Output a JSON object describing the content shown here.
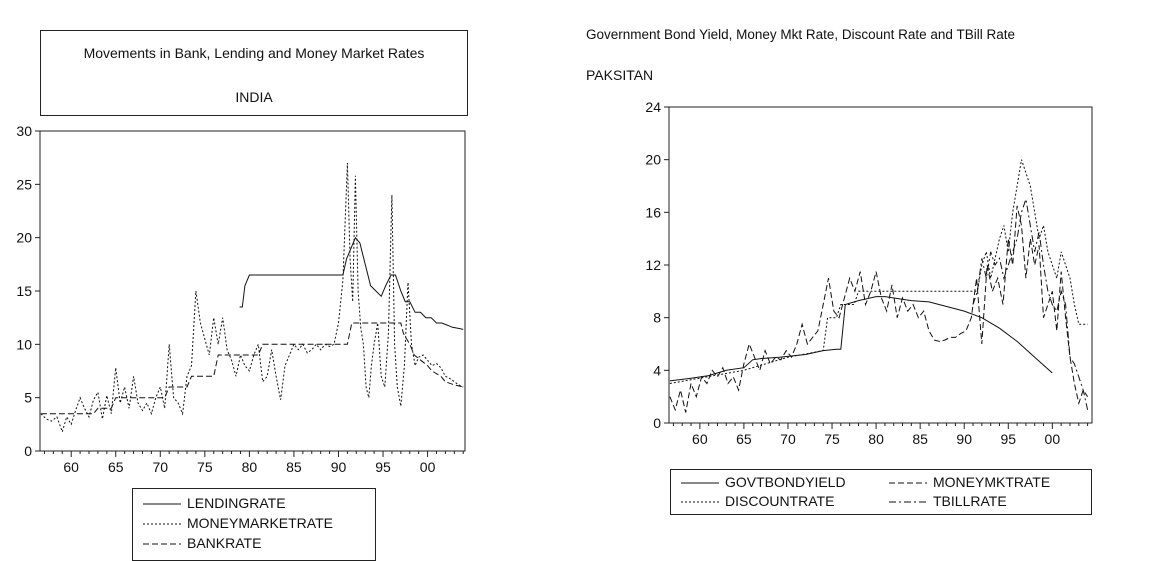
{
  "left_chart": {
    "title_line1": "Movements in Bank, Lending and Money Market Rates",
    "title_line2": "INDIA"
  },
  "right_chart": {
    "title": "Government Bond Yield, Money Mkt Rate, Discount Rate and TBill Rate",
    "country": "PAKSITAN"
  },
  "chart_data": [
    {
      "type": "line",
      "title": "Movements in Bank, Lending and Money Market Rates",
      "subtitle": "INDIA",
      "xlim": [
        1956.5,
        2004.2
      ],
      "ylim": [
        0,
        30
      ],
      "xticks": [
        1960,
        1965,
        1970,
        1975,
        1980,
        1985,
        1990,
        1995,
        2000
      ],
      "xtick_labels": [
        "60",
        "65",
        "70",
        "75",
        "80",
        "85",
        "90",
        "95",
        "00"
      ],
      "yticks": [
        0,
        5,
        10,
        15,
        20,
        25,
        30
      ],
      "ytick_labels": [
        "0",
        "5",
        "10",
        "15",
        "20",
        "25",
        "30"
      ],
      "legend_position": "bottom",
      "series": [
        {
          "name": "LENDINGRATE",
          "style": "solid",
          "x": [
            1978.9,
            1979.2,
            1979.5,
            1980.0,
            1990.5,
            1990.9,
            1991.4,
            1991.9,
            1992.4,
            1993.0,
            1993.6,
            1994.2,
            1994.8,
            1995.3,
            1995.9,
            1996.4,
            1997.0,
            1997.5,
            1998.0,
            1998.6,
            1999.2,
            1999.8,
            2000.4,
            2001.0,
            2001.6,
            2002.2,
            2002.8,
            2003.4,
            2004.0
          ],
          "y": [
            13.5,
            13.5,
            15.5,
            16.5,
            16.5,
            18.0,
            19.0,
            20.0,
            19.5,
            17.5,
            15.5,
            15.0,
            14.5,
            15.5,
            16.5,
            16.5,
            15.0,
            14.0,
            14.0,
            13.0,
            13.0,
            12.5,
            12.5,
            12.0,
            12.0,
            11.8,
            11.6,
            11.5,
            11.4
          ]
        },
        {
          "name": "MONEYMARKETRATE",
          "style": "dotted",
          "x": [
            1956.6,
            1957.2,
            1957.8,
            1958.4,
            1959.0,
            1959.5,
            1960.0,
            1960.5,
            1961.0,
            1961.5,
            1962.0,
            1962.5,
            1963.0,
            1963.5,
            1964.0,
            1964.5,
            1965.0,
            1965.5,
            1966.0,
            1966.5,
            1967.0,
            1967.5,
            1968.0,
            1968.5,
            1969.0,
            1969.5,
            1970.0,
            1970.5,
            1971.0,
            1971.5,
            1972.0,
            1972.5,
            1973.0,
            1973.5,
            1974.0,
            1974.5,
            1975.0,
            1975.5,
            1976.0,
            1976.5,
            1977.0,
            1977.5,
            1978.0,
            1978.5,
            1979.0,
            1979.5,
            1980.0,
            1980.5,
            1981.0,
            1981.5,
            1982.0,
            1982.5,
            1983.0,
            1983.5,
            1984.0,
            1984.5,
            1985.0,
            1985.5,
            1986.0,
            1986.5,
            1987.0,
            1987.5,
            1988.0,
            1988.5,
            1989.0,
            1989.5,
            1990.0,
            1990.5,
            1991.0,
            1991.3,
            1991.6,
            1991.9,
            1992.2,
            1992.5,
            1992.8,
            1993.1,
            1993.4,
            1993.7,
            1994.0,
            1994.4,
            1994.8,
            1995.2,
            1995.6,
            1996.0,
            1996.3,
            1996.6,
            1997.0,
            1997.4,
            1997.8,
            1998.2,
            1998.6,
            1999.0,
            1999.5,
            2000.0,
            2000.5,
            2001.0,
            2001.5,
            2002.0,
            2002.5,
            2003.0,
            2003.5,
            2004.0
          ],
          "y": [
            3.5,
            3.0,
            2.8,
            3.2,
            1.8,
            3.2,
            2.5,
            3.8,
            5.0,
            4.0,
            3.2,
            4.8,
            5.5,
            3.0,
            5.2,
            3.5,
            7.8,
            4.5,
            6.0,
            4.0,
            7.0,
            4.5,
            3.8,
            4.5,
            3.5,
            5.0,
            6.0,
            4.0,
            10.0,
            5.0,
            4.5,
            3.5,
            7.0,
            8.0,
            15.0,
            12.0,
            10.5,
            9.0,
            12.5,
            10.0,
            12.5,
            9.5,
            8.5,
            7.0,
            9.0,
            8.0,
            7.5,
            9.0,
            10.0,
            6.5,
            7.0,
            9.5,
            7.0,
            4.8,
            8.0,
            9.0,
            10.0,
            9.5,
            10.0,
            9.2,
            9.5,
            10.0,
            9.5,
            10.0,
            9.8,
            10.0,
            12.0,
            16.0,
            27.0,
            18.0,
            14.0,
            25.8,
            15.0,
            11.5,
            10.0,
            6.0,
            5.0,
            8.0,
            10.0,
            12.0,
            7.0,
            6.0,
            11.0,
            24.0,
            10.0,
            6.0,
            4.2,
            8.0,
            15.8,
            10.0,
            8.0,
            8.8,
            9.0,
            8.5,
            8.0,
            8.2,
            7.8,
            7.0,
            6.8,
            6.5,
            6.2,
            6.0
          ]
        },
        {
          "name": "BANKRATE",
          "style": "dashed",
          "x": [
            1956.6,
            1960.5,
            1962.5,
            1963.0,
            1964.5,
            1965.0,
            1967.0,
            1970.5,
            1971.0,
            1973.0,
            1973.5,
            1976.0,
            1976.5,
            1981.0,
            1981.5,
            1991.0,
            1991.5,
            1996.0,
            1997.0,
            1997.3,
            1998.0,
            1998.5,
            2000.0,
            2000.5,
            2001.5,
            2002.0,
            2003.0,
            2004.0
          ],
          "y": [
            3.5,
            3.5,
            3.5,
            4.0,
            4.0,
            5.0,
            5.0,
            5.0,
            6.0,
            6.0,
            7.0,
            7.0,
            9.0,
            9.0,
            10.0,
            10.0,
            12.0,
            12.0,
            12.0,
            11.0,
            10.0,
            9.0,
            8.0,
            7.5,
            7.0,
            6.5,
            6.2,
            6.0
          ]
        }
      ]
    },
    {
      "type": "line",
      "title": "Government Bond Yield, Money Mkt Rate, Discount Rate and TBill Rate",
      "subtitle": "PAKSITAN",
      "xlim": [
        1956.5,
        2004.5
      ],
      "ylim": [
        0,
        24
      ],
      "xticks": [
        1960,
        1965,
        1970,
        1975,
        1980,
        1985,
        1990,
        1995,
        2000
      ],
      "xtick_labels": [
        "60",
        "65",
        "70",
        "75",
        "80",
        "85",
        "90",
        "95",
        "00"
      ],
      "yticks": [
        0,
        4,
        8,
        12,
        16,
        20,
        24
      ],
      "ytick_labels": [
        "0",
        "4",
        "8",
        "12",
        "16",
        "20",
        "24"
      ],
      "legend_position": "bottom",
      "series": [
        {
          "name": "GOVTBONDYIELD",
          "style": "solid",
          "x": [
            1956.6,
            1959.0,
            1961.0,
            1963.0,
            1965.0,
            1966.0,
            1967.0,
            1969.0,
            1970.5,
            1972.0,
            1974.0,
            1975.5,
            1976.0,
            1976.5,
            1978.0,
            1980.0,
            1981.0,
            1984.0,
            1986.0,
            1990.0,
            1992.0,
            1994.0,
            1996.0,
            1998.0,
            2000.0
          ],
          "y": [
            3.2,
            3.4,
            3.6,
            4.0,
            4.2,
            4.8,
            4.9,
            5.0,
            5.1,
            5.2,
            5.5,
            5.6,
            5.6,
            9.0,
            9.3,
            9.6,
            9.6,
            9.3,
            9.2,
            8.5,
            8.0,
            7.2,
            6.2,
            5.0,
            3.8
          ]
        },
        {
          "name": "MONEYMKTRATE",
          "style": "dashed",
          "x": [
            1956.6,
            1957.2,
            1957.8,
            1958.4,
            1959.0,
            1959.6,
            1960.2,
            1960.8,
            1961.4,
            1962.0,
            1962.6,
            1963.2,
            1963.8,
            1964.4,
            1965.0,
            1965.6,
            1966.2,
            1966.8,
            1967.4,
            1968.0,
            1968.6,
            1969.2,
            1969.8,
            1970.4,
            1971.0,
            1971.6,
            1972.2,
            1972.8,
            1973.4,
            1974.0,
            1974.6,
            1975.2,
            1975.8,
            1976.4,
            1977.0,
            1977.6,
            1978.2,
            1978.8,
            1979.4,
            1980.0,
            1980.6,
            1981.2,
            1981.8,
            1982.4,
            1983.0,
            1983.6,
            1984.2,
            1984.8,
            1985.4,
            1986.0,
            1986.6,
            1987.2,
            1987.8,
            1988.4,
            1989.0,
            1989.6,
            1990.2,
            1990.8,
            1991.4,
            1992.0,
            1992.6,
            1993.2,
            1993.8,
            1994.4,
            1995.0,
            1995.5,
            1996.0,
            1996.5,
            1997.0,
            1997.5,
            1998.0,
            1998.5,
            1999.0,
            1999.5,
            2000.0,
            2000.5,
            2001.0,
            2001.5,
            2002.0,
            2002.5,
            2003.0,
            2003.5,
            2004.0
          ],
          "y": [
            2.0,
            1.0,
            2.5,
            0.8,
            3.0,
            2.0,
            3.5,
            3.0,
            4.0,
            3.5,
            4.2,
            3.0,
            3.5,
            2.5,
            4.5,
            6.0,
            5.0,
            4.0,
            5.5,
            4.5,
            5.0,
            4.8,
            5.5,
            5.0,
            6.0,
            7.5,
            6.0,
            6.5,
            7.0,
            9.0,
            11.0,
            8.5,
            8.0,
            9.5,
            11.0,
            10.0,
            11.5,
            9.0,
            10.0,
            11.5,
            9.5,
            8.5,
            10.5,
            8.0,
            9.5,
            8.5,
            9.0,
            8.0,
            8.5,
            7.0,
            6.3,
            6.2,
            6.3,
            6.5,
            6.5,
            6.8,
            7.0,
            8.0,
            11.0,
            6.0,
            12.0,
            10.0,
            11.0,
            9.0,
            14.0,
            12.0,
            16.5,
            15.0,
            11.0,
            14.0,
            12.0,
            13.5,
            8.0,
            9.0,
            10.0,
            7.0,
            11.5,
            8.0,
            5.0,
            3.0,
            1.5,
            2.5,
            2.0
          ]
        },
        {
          "name": "DISCOUNTRATE",
          "style": "dotted",
          "x": [
            1956.6,
            1965.0,
            1970.0,
            1974.0,
            1974.5,
            1975.5,
            1976.0,
            1977.5,
            1978.0,
            1980.0,
            1991.5,
            1992.0,
            1992.5,
            1993.0,
            1993.5,
            1994.0,
            1994.5,
            1995.0,
            1995.5,
            1996.0,
            1996.5,
            1997.0,
            1997.5,
            1998.0,
            1998.5,
            1999.0,
            1999.5,
            2000.0,
            2000.5,
            2001.0,
            2001.5,
            2002.0,
            2002.5,
            2003.0,
            2004.0
          ],
          "y": [
            3.0,
            4.0,
            5.0,
            5.5,
            8.0,
            8.0,
            9.0,
            9.0,
            10.0,
            10.0,
            10.0,
            12.0,
            13.0,
            11.0,
            12.5,
            14.0,
            15.0,
            13.0,
            16.0,
            18.0,
            20.0,
            19.0,
            18.0,
            16.0,
            14.0,
            15.0,
            13.0,
            12.0,
            11.0,
            13.0,
            12.0,
            11.0,
            9.0,
            7.5,
            7.5
          ]
        },
        {
          "name": "TBILLRATE",
          "style": "dashdot",
          "x": [
            1991.0,
            1991.5,
            1992.0,
            1992.5,
            1993.0,
            1993.5,
            1994.0,
            1994.5,
            1995.0,
            1995.5,
            1996.0,
            1996.5,
            1997.0,
            1997.5,
            1998.0,
            1998.5,
            1999.0,
            1999.5,
            2000.0,
            2000.5,
            2001.0,
            2001.5,
            2002.0,
            2002.5,
            2003.0,
            2003.5,
            2004.0
          ],
          "y": [
            9.0,
            10.0,
            12.5,
            11.0,
            13.0,
            12.0,
            12.5,
            11.0,
            12.0,
            13.0,
            14.0,
            16.0,
            17.0,
            15.0,
            13.0,
            14.5,
            12.0,
            10.0,
            9.0,
            8.5,
            10.0,
            9.0,
            5.0,
            4.5,
            3.5,
            2.5,
            1.0
          ]
        }
      ]
    }
  ]
}
